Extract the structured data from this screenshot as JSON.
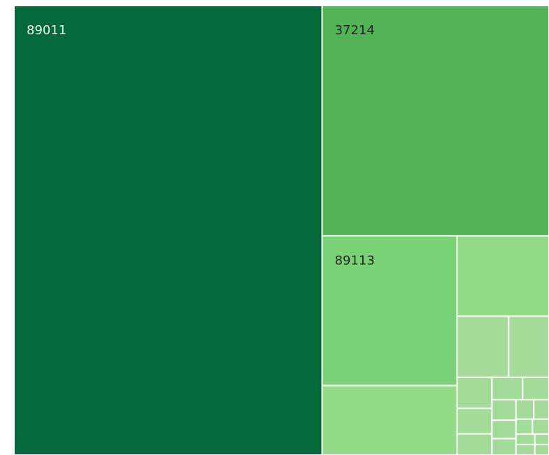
{
  "chart_data": {
    "type": "treemap",
    "categories": [
      "89011",
      "37214",
      "89113",
      null,
      null,
      null,
      null,
      null,
      null,
      null,
      null,
      null,
      null,
      null,
      null,
      null,
      null,
      null,
      null,
      null,
      null,
      null,
      null
    ],
    "values": [
      281,
      106,
      41,
      19,
      15,
      6.4,
      5,
      2.2,
      1.8,
      1.5,
      1.4,
      1.2,
      1.0,
      0.9,
      0.8,
      0.7,
      0.6,
      0.5,
      0.5,
      0.4,
      0.4,
      0.3,
      0.3
    ],
    "colors": [
      "#03693a",
      "#52b356",
      "#7bd176",
      "#93db87",
      "#93db87",
      "#a3dc98",
      "#a3dc98",
      "#a3dc98",
      "#a3dc98",
      "#a3dc98",
      "#a3dc98",
      "#a3dc98",
      "#a3dc98",
      "#a3dc98",
      "#a3dc98",
      "#a3dc98",
      "#a3dc98",
      "#a3dc98",
      "#a3dc98",
      "#a3dc98",
      "#a3dc98",
      "#a3dc98",
      "#a3dc98"
    ]
  }
}
